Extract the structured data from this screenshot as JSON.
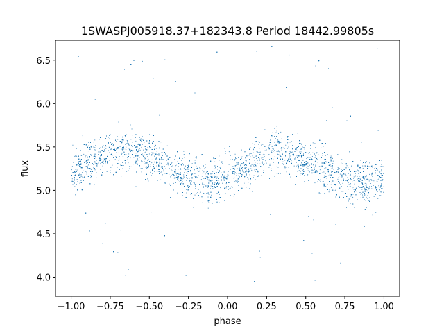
{
  "chart_data": {
    "type": "scatter",
    "title": "1SWASPJ005918.37+182343.8 Period 18442.99805s",
    "xlabel": "phase",
    "ylabel": "flux",
    "xlim": [
      -1.1,
      1.1
    ],
    "ylim": [
      3.78,
      6.73
    ],
    "x_ticks": [
      -1.0,
      -0.75,
      -0.5,
      -0.25,
      0.0,
      0.25,
      0.5,
      0.75,
      1.0
    ],
    "x_tick_labels": [
      "−1.00",
      "−0.75",
      "−0.50",
      "−0.25",
      "0.00",
      "0.25",
      "0.50",
      "0.75",
      "1.00"
    ],
    "y_ticks": [
      4.0,
      4.5,
      5.0,
      5.5,
      6.0,
      6.5
    ],
    "y_tick_labels": [
      "4.0",
      "4.5",
      "5.0",
      "5.5",
      "6.0",
      "6.5"
    ],
    "grid": false,
    "series": [
      {
        "color": "#1f77b4",
        "phase_range": [
          -1.0,
          1.0
        ],
        "trend_x": [
          -1.0,
          -0.9,
          -0.8,
          -0.7,
          -0.6,
          -0.5,
          -0.4,
          -0.3,
          -0.2,
          -0.1,
          0.0,
          0.1,
          0.2,
          0.3,
          0.4,
          0.5,
          0.6,
          0.7,
          0.8,
          0.9,
          1.0
        ],
        "trend_y": [
          5.2,
          5.3,
          5.4,
          5.46,
          5.45,
          5.38,
          5.28,
          5.18,
          5.12,
          5.1,
          5.15,
          5.25,
          5.36,
          5.45,
          5.45,
          5.38,
          5.28,
          5.18,
          5.12,
          5.1,
          5.15
        ],
        "scatter_spread": 0.12,
        "outlier_range": [
          3.92,
          6.68
        ]
      }
    ]
  }
}
